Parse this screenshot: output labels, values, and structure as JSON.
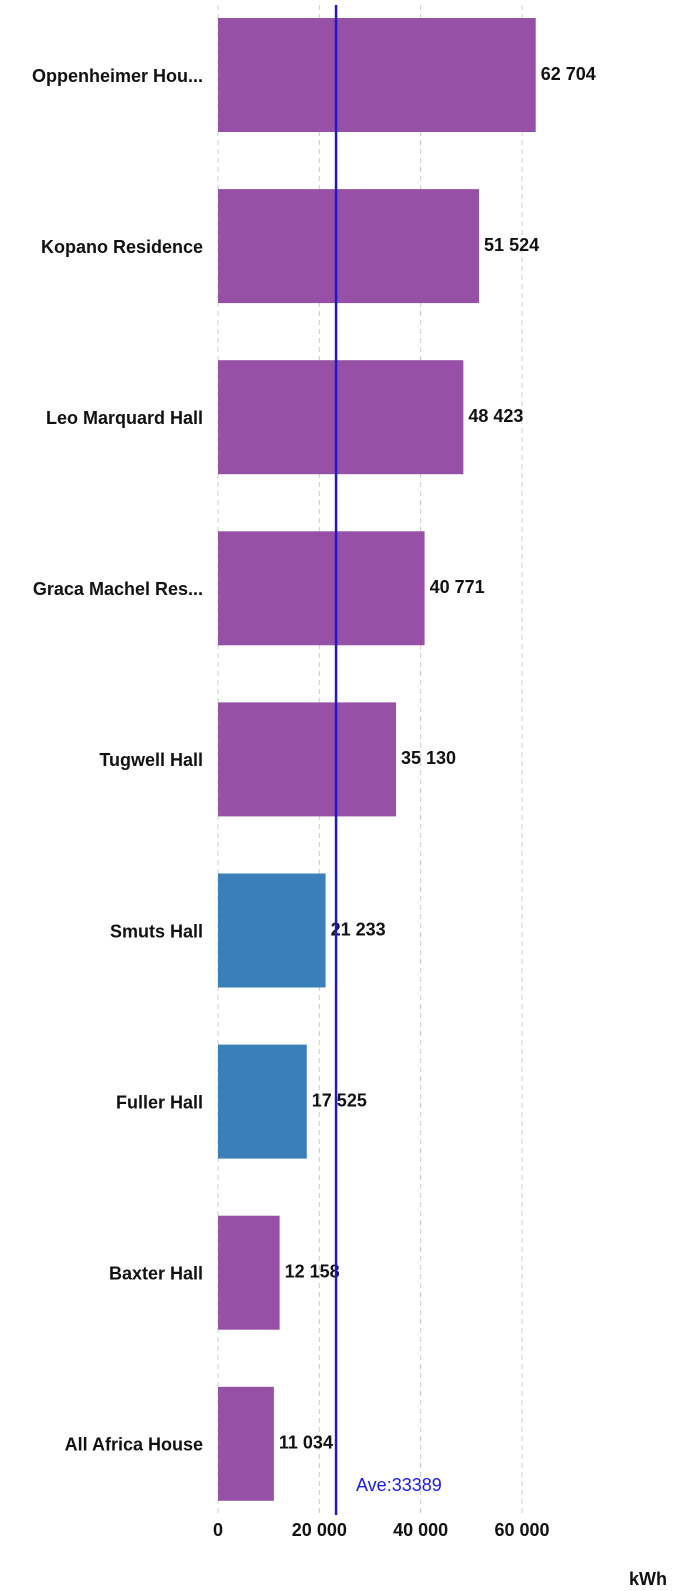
{
  "chart_data": {
    "type": "hbar",
    "categories": [
      "Oppenheimer Hou...",
      "Kopano Residence",
      "Leo Marquard Hall",
      "Graca Machel Res...",
      "Tugwell Hall",
      "Smuts Hall",
      "Fuller Hall",
      "Baxter Hall",
      "All Africa House"
    ],
    "values": [
      62704,
      51524,
      48423,
      40771,
      35130,
      21233,
      17525,
      12158,
      11034
    ],
    "value_labels": [
      "62 704",
      "51 524",
      "48 423",
      "40 771",
      "35 130",
      "21 233",
      "17 525",
      "12 158",
      "11 034"
    ],
    "colors": [
      "#9650a5",
      "#9650a5",
      "#9650a5",
      "#9650a5",
      "#9650a5",
      "#3a7fba",
      "#3a7fba",
      "#9650a5",
      "#9650a5"
    ],
    "xlim": [
      0,
      60000
    ],
    "xticks": [
      0,
      {
        "value": 20000,
        "label": "20 000"
      },
      {
        "value": 40000,
        "label": "40 000"
      },
      {
        "value": 60000,
        "label": "60 000"
      }
    ],
    "x_label": "kWh",
    "reference_line": {
      "value": 23300,
      "color": "#1a1acc"
    },
    "annotation": "Ave:33389",
    "grid": true
  }
}
